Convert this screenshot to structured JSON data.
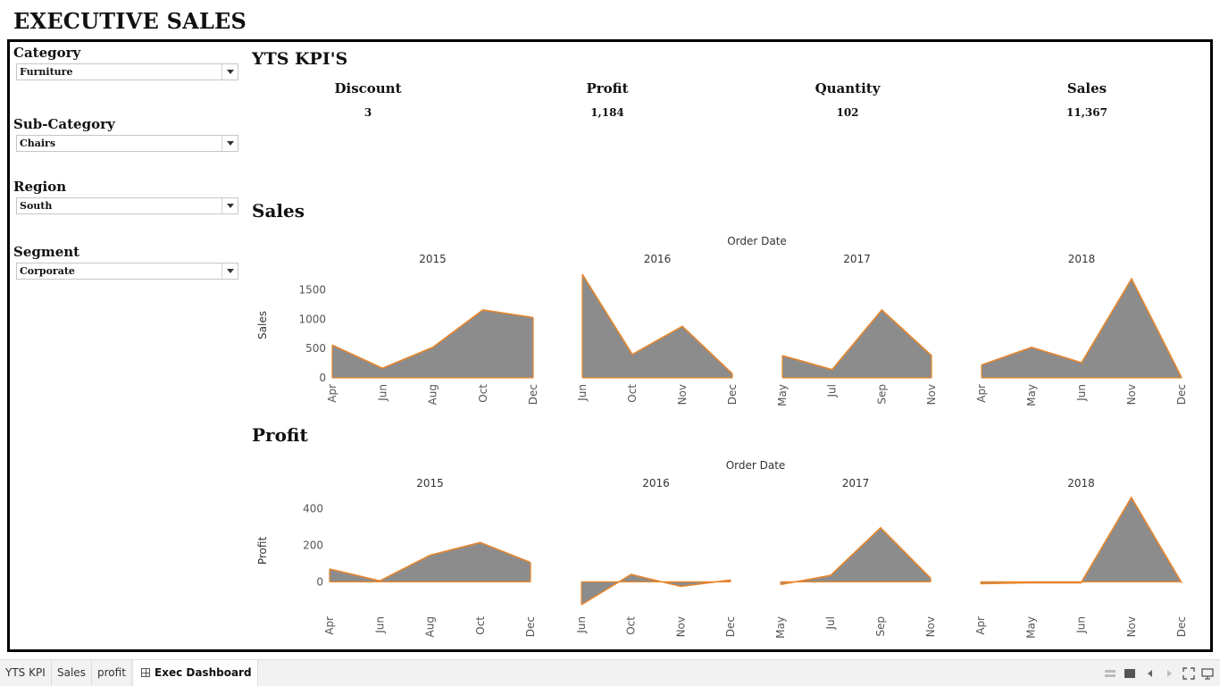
{
  "title": "EXECUTIVE SALES",
  "filters": [
    {
      "label": "Category",
      "value": "Furniture"
    },
    {
      "label": "Sub-Category",
      "value": "Chairs"
    },
    {
      "label": "Region",
      "value": "South"
    },
    {
      "label": "Segment",
      "value": "Corporate"
    }
  ],
  "kpi_section": {
    "title": "YTS KPI'S",
    "items": [
      {
        "label": "Discount",
        "value": "3"
      },
      {
        "label": "Profit",
        "value": "1,184"
      },
      {
        "label": "Quantity",
        "value": "102"
      },
      {
        "label": "Sales",
        "value": "11,367"
      }
    ]
  },
  "sales_section_title": "Sales",
  "profit_section_title": "Profit",
  "tabs": [
    "YTS KPI",
    "Sales",
    "profit",
    "Exec Dashboard"
  ],
  "active_tab": "Exec Dashboard",
  "colors": {
    "area_fill": "#8c8c8c",
    "area_stroke": "#e8862c",
    "axis_text": "#555555"
  },
  "toolbar_icons": [
    "device-layout-icon",
    "presentation-icon",
    "previous-icon",
    "next-icon",
    "fullscreen-icon",
    "present-mode-icon"
  ],
  "chart_data": [
    {
      "type": "area",
      "title": "Sales",
      "header": "Order Date",
      "ylabel": "Sales",
      "ylim": [
        0,
        1800
      ],
      "yticks": [
        0,
        500,
        1000,
        1500
      ],
      "panels": [
        {
          "year": "2015",
          "x": [
            "Apr",
            "Jun",
            "Aug",
            "Oct",
            "Dec"
          ],
          "values": [
            560,
            165,
            520,
            1160,
            1030
          ]
        },
        {
          "year": "2016",
          "x": [
            "Jun",
            "Oct",
            "Nov",
            "Dec"
          ],
          "values": [
            1770,
            400,
            880,
            70
          ]
        },
        {
          "year": "2017",
          "x": [
            "May",
            "Jul",
            "Sep",
            "Nov"
          ],
          "values": [
            380,
            140,
            1160,
            380
          ]
        },
        {
          "year": "2018",
          "x": [
            "Apr",
            "May",
            "Jun",
            "Nov",
            "Dec"
          ],
          "values": [
            220,
            520,
            260,
            1690,
            5
          ]
        }
      ]
    },
    {
      "type": "area",
      "title": "Profit",
      "header": "Order Date",
      "ylabel": "Profit",
      "ylim": [
        -130,
        470
      ],
      "yticks": [
        0,
        200,
        400
      ],
      "panels": [
        {
          "year": "2015",
          "x": [
            "Apr",
            "Jun",
            "Aug",
            "Oct",
            "Dec"
          ],
          "values": [
            70,
            5,
            145,
            215,
            105
          ]
        },
        {
          "year": "2016",
          "x": [
            "Jun",
            "Oct",
            "Nov",
            "Dec"
          ],
          "values": [
            -125,
            40,
            -25,
            10
          ]
        },
        {
          "year": "2017",
          "x": [
            "May",
            "Jul",
            "Sep",
            "Nov"
          ],
          "values": [
            -15,
            35,
            295,
            20
          ]
        },
        {
          "year": "2018",
          "x": [
            "Apr",
            "May",
            "Jun",
            "Nov",
            "Dec"
          ],
          "values": [
            -10,
            -5,
            -5,
            460,
            -5
          ]
        }
      ]
    }
  ]
}
